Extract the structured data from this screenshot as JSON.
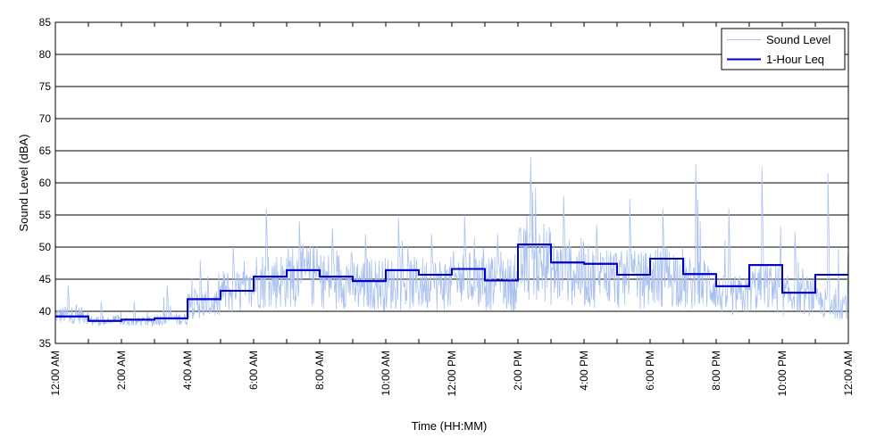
{
  "chart_data": {
    "type": "line",
    "title": "",
    "xlabel": "Time (HH:MM)",
    "ylabel": "Sound Level (dBA)",
    "xlim": [
      0,
      24
    ],
    "ylim": [
      35,
      85
    ],
    "yticks": [
      35,
      40,
      45,
      50,
      55,
      60,
      65,
      70,
      75,
      80,
      85
    ],
    "xticks": [
      {
        "hour": 0,
        "label": "12:00 AM"
      },
      {
        "hour": 2,
        "label": "2:00 AM"
      },
      {
        "hour": 4,
        "label": "4:00 AM"
      },
      {
        "hour": 6,
        "label": "6:00 AM"
      },
      {
        "hour": 8,
        "label": "8:00 AM"
      },
      {
        "hour": 10,
        "label": "10:00 AM"
      },
      {
        "hour": 12,
        "label": "12:00 PM"
      },
      {
        "hour": 14,
        "label": "2:00 PM"
      },
      {
        "hour": 16,
        "label": "4:00 PM"
      },
      {
        "hour": 18,
        "label": "6:00 PM"
      },
      {
        "hour": 20,
        "label": "8:00 PM"
      },
      {
        "hour": 22,
        "label": "10:00 PM"
      },
      {
        "hour": 24,
        "label": "12:00 AM"
      }
    ],
    "grid": "horizontal",
    "legend_position": "top-right",
    "series": [
      {
        "name": "Sound Level",
        "color": "#a9c1f0",
        "style": "thin-line",
        "hourly_base": [
          39,
          38.3,
          38.2,
          38.5,
          40.5,
          42,
          43.5,
          44,
          43.5,
          43,
          43,
          43,
          43.5,
          43,
          45.5,
          44.5,
          44,
          43.5,
          44,
          43,
          41.5,
          42.5,
          41.5,
          40.5
        ],
        "hourly_peak": [
          44,
          41.5,
          41.5,
          44,
          48,
          50,
          56,
          54,
          53,
          52,
          54.5,
          52,
          55,
          52,
          64,
          58,
          53.5,
          57.5,
          56,
          63,
          56,
          62.5,
          52.5,
          61.5
        ]
      },
      {
        "name": "1-Hour Leq",
        "color": "#0000c8",
        "style": "step",
        "x": [
          0,
          1,
          2,
          3,
          4,
          5,
          6,
          7,
          8,
          9,
          10,
          11,
          12,
          13,
          14,
          15,
          16,
          17,
          18,
          19,
          20,
          21,
          22,
          23
        ],
        "values": [
          39.2,
          38.5,
          38.7,
          38.9,
          41.9,
          43.2,
          45.4,
          46.4,
          45.4,
          44.7,
          46.4,
          45.7,
          46.6,
          44.8,
          50.4,
          47.6,
          47.4,
          45.7,
          48.2,
          45.8,
          43.9,
          47.2,
          42.9,
          45.7
        ]
      }
    ]
  }
}
